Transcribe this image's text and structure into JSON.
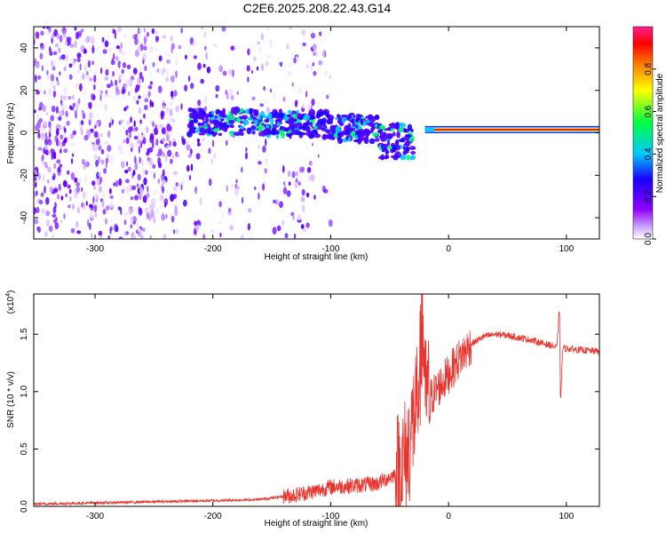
{
  "figure_title": "C2E6.2025.208.22.43.G14",
  "chart_data": [
    {
      "type": "heatmap",
      "title": "C2E6.2025.208.22.43.G14",
      "xlabel": "Height of straight line (km)",
      "ylabel": "Frequency (Hz)",
      "xlim": [
        -352,
        128
      ],
      "ylim": [
        -50,
        50
      ],
      "x_ticks": [
        -300,
        -200,
        -100,
        0,
        100
      ],
      "y_ticks": [
        -40,
        -20,
        0,
        20,
        40
      ],
      "colorbar": {
        "label": "Normalized spectral amplitude",
        "range": [
          0,
          1
        ],
        "ticks": [
          "0.0",
          "0.2",
          "0.4",
          "0.6",
          "0.8"
        ],
        "colors": [
          "#ffffff",
          "#8f00ff",
          "#1a00ff",
          "#00c8ff",
          "#00ff40",
          "#ffff00",
          "#ff8000",
          "#ff0000",
          "#ff2090"
        ]
      },
      "regions": [
        {
          "name": "noise",
          "x_range": [
            -352,
            -140
          ],
          "frequency_range": [
            -50,
            50
          ],
          "amplitude": 0.1
        },
        {
          "name": "signal band",
          "x_range": [
            -220,
            -30
          ],
          "center_frequency": [
            5,
            4,
            2,
            -5
          ],
          "amplitude": 0.35
        },
        {
          "name": "stable carrier",
          "x_range": [
            -20,
            128
          ],
          "center_frequency": 1.5,
          "amplitude": 0.95
        }
      ]
    },
    {
      "type": "line",
      "xlabel": "Height of straight line (km)",
      "ylabel": "SNR (10 * v/v)",
      "ylabel_multiplier": "(x10",
      "ylabel_exponent": "4",
      "ylabel_multiplier_close": ")",
      "xlim": [
        -352,
        128
      ],
      "ylim": [
        0,
        1.85
      ],
      "x_ticks": [
        -300,
        -200,
        -100,
        0,
        100
      ],
      "y_ticks": [
        0.0,
        0.5,
        1.0,
        1.5
      ],
      "y_tick_labels": [
        "0.0",
        "0.5",
        "1.0",
        "1.5"
      ],
      "series": [
        {
          "color": "#e8342e",
          "points": [
            [
              -352,
              0.02
            ],
            [
              -300,
              0.03
            ],
            [
              -250,
              0.04
            ],
            [
              -200,
              0.05
            ],
            [
              -160,
              0.06
            ],
            [
              -130,
              0.1
            ],
            [
              -110,
              0.14
            ],
            [
              -100,
              0.17
            ],
            [
              -80,
              0.18
            ],
            [
              -60,
              0.2
            ],
            [
              -45,
              0.28
            ],
            [
              -35,
              0.45
            ],
            [
              -28,
              0.85
            ],
            [
              -24,
              1.2
            ],
            [
              -22,
              1.6
            ],
            [
              -20,
              1.0
            ],
            [
              -15,
              0.95
            ],
            [
              -10,
              1.02
            ],
            [
              -5,
              1.08
            ],
            [
              0,
              1.15
            ],
            [
              10,
              1.3
            ],
            [
              20,
              1.42
            ],
            [
              30,
              1.48
            ],
            [
              40,
              1.5
            ],
            [
              50,
              1.49
            ],
            [
              60,
              1.47
            ],
            [
              70,
              1.45
            ],
            [
              80,
              1.42
            ],
            [
              88,
              1.4
            ],
            [
              92,
              1.38
            ],
            [
              94,
              1.75
            ],
            [
              95,
              0.92
            ],
            [
              97,
              1.38
            ],
            [
              105,
              1.37
            ],
            [
              115,
              1.36
            ],
            [
              128,
              1.35
            ]
          ]
        }
      ]
    }
  ]
}
